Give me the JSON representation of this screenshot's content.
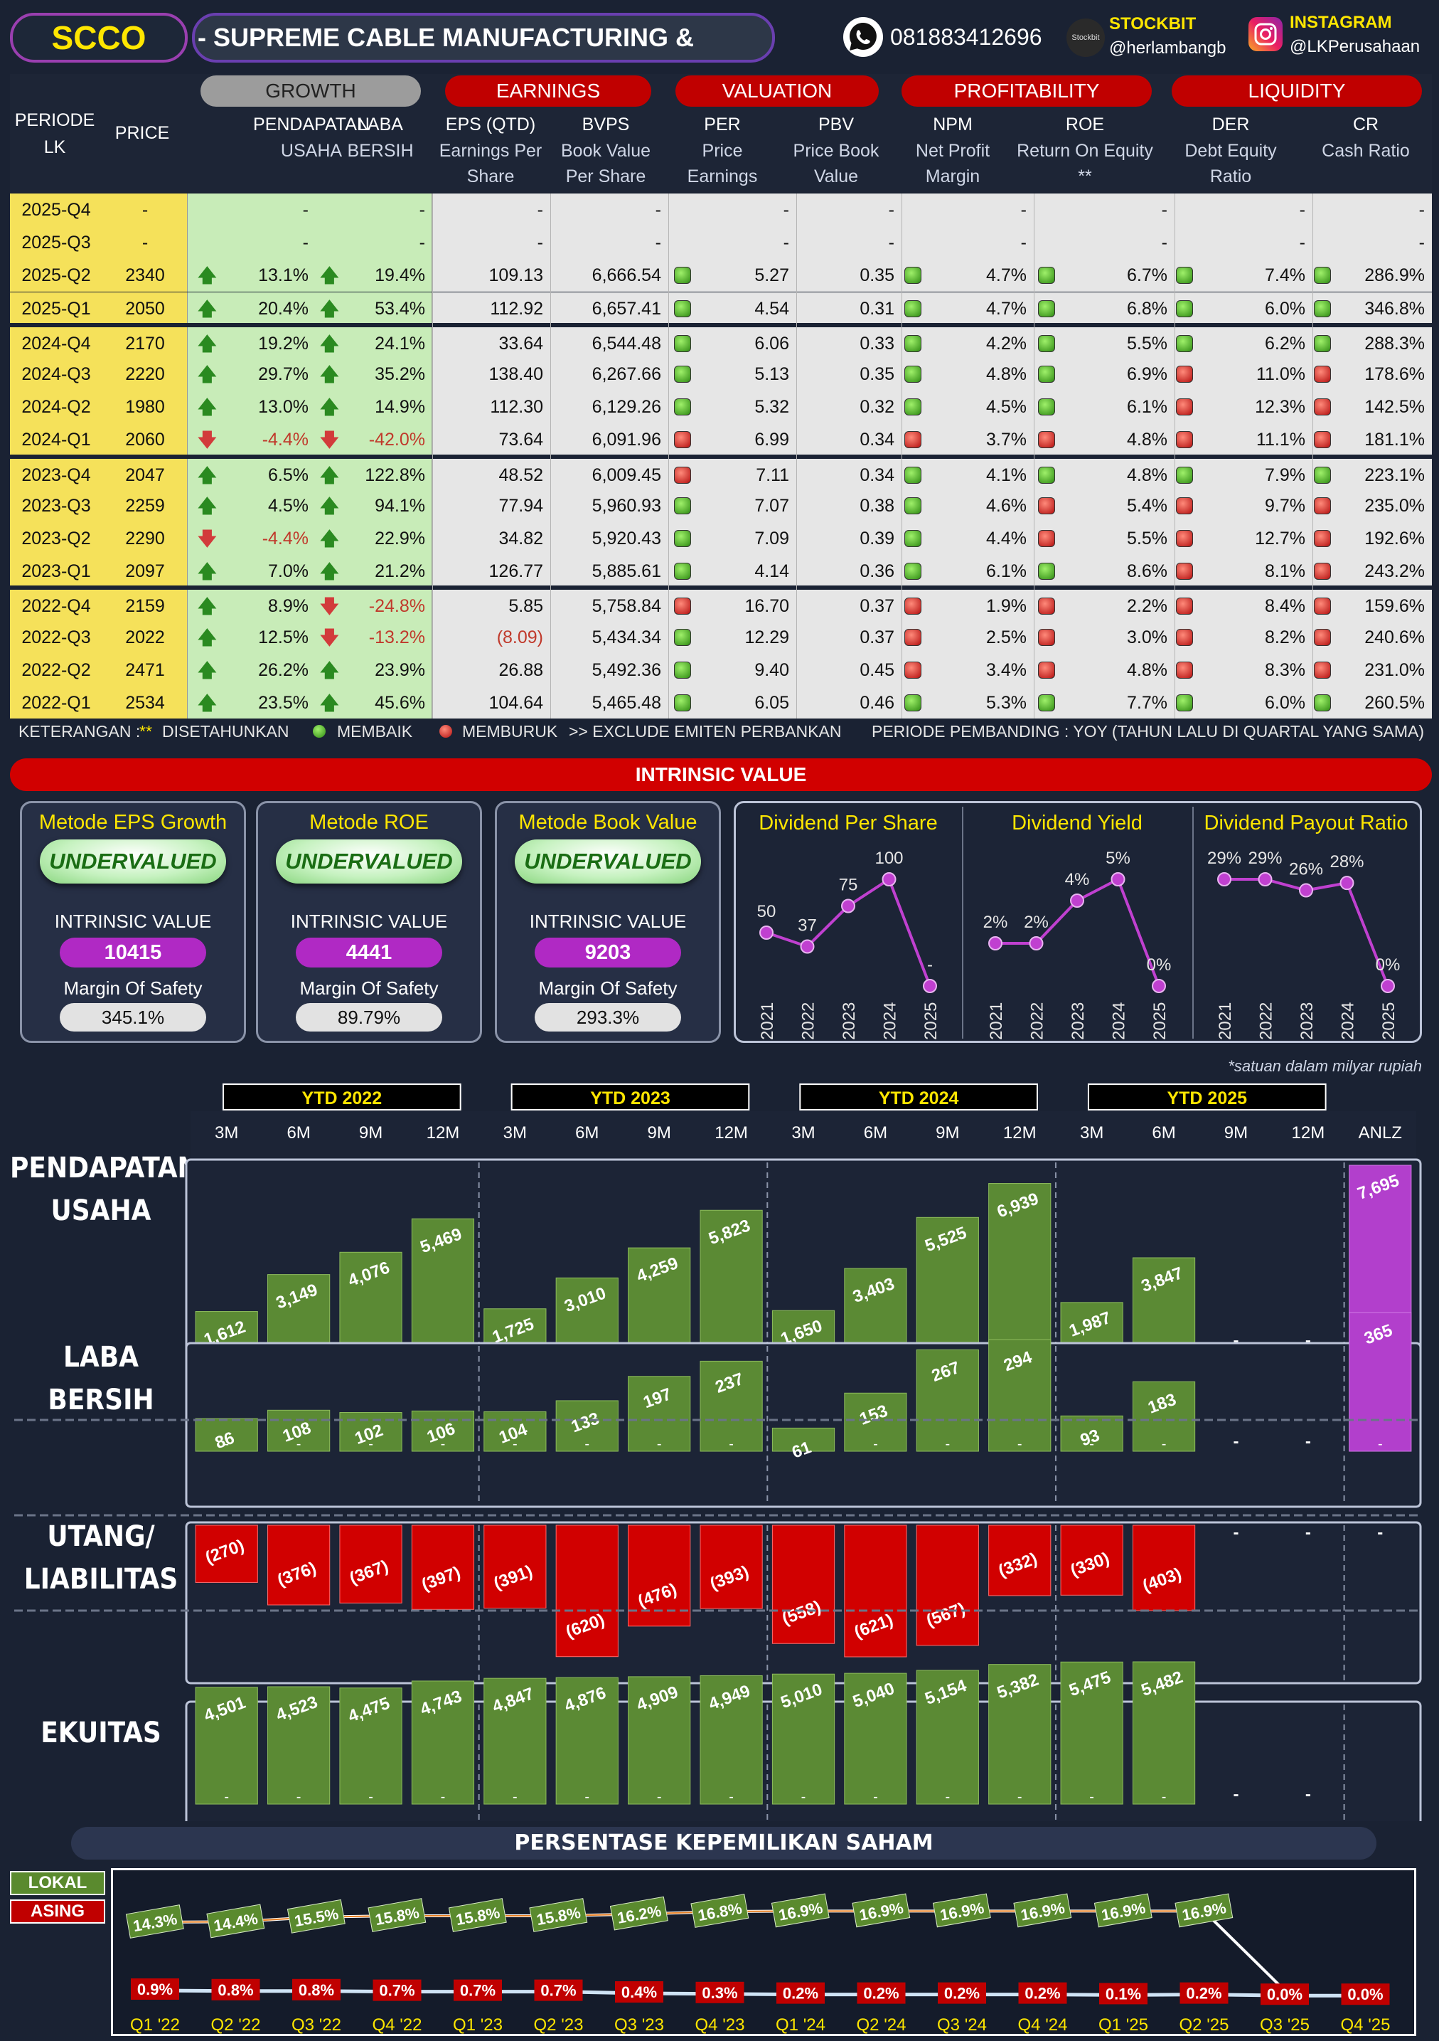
{
  "header": {
    "ticker": "SCCO",
    "company": "-  SUPREME CABLE MANUFACTURING &",
    "phone": "081883412696",
    "stockbit_title": "STOCKBIT",
    "stockbit_handle": "@herlambangb",
    "instagram_title": "INSTAGRAM",
    "instagram_handle": "@LKPerusahaan",
    "stockbit_logo_text": "Stockbit"
  },
  "table": {
    "group_headers": {
      "growth": "GROWTH",
      "earnings": "EARNINGS",
      "valuation": "VALUATION",
      "profitability": "PROFITABILITY",
      "liquidity": "LIQUIDITY"
    },
    "col_periode": "PERIODE\nLK",
    "col_price": "PRICE",
    "columns": [
      {
        "title": "PENDAPATAN",
        "sub": "USAHA"
      },
      {
        "title": "LABA",
        "sub": "BERSIH"
      },
      {
        "title": "EPS (QTD)",
        "sub": "Earnings Per Share"
      },
      {
        "title": "BVPS",
        "sub": "Book Value Per Share"
      },
      {
        "title": "PER",
        "sub": "Price Earnings Ratio **"
      },
      {
        "title": "PBV",
        "sub": "Price Book Value"
      },
      {
        "title": "NPM",
        "sub": "Net Profit Margin"
      },
      {
        "title": "ROE",
        "sub": "Return On Equity **"
      },
      {
        "title": "DER",
        "sub": "Debt Equity Ratio"
      },
      {
        "title": "CR",
        "sub": "Cash Ratio"
      }
    ],
    "rows": [
      {
        "p": "2025-Q4",
        "price": "-",
        "rev": "-",
        "ni": "-",
        "eps": "-",
        "bvps": "-",
        "per": "-",
        "pbv": "-",
        "npm": "-",
        "roe": "-",
        "der": "-",
        "cr": "-",
        "blank": true
      },
      {
        "p": "2025-Q3",
        "price": "-",
        "rev": "-",
        "ni": "-",
        "eps": "-",
        "bvps": "-",
        "per": "-",
        "pbv": "-",
        "npm": "-",
        "roe": "-",
        "der": "-",
        "cr": "-",
        "blank": true
      },
      {
        "p": "2025-Q2",
        "price": "2340",
        "rev": "13.1%",
        "ra": "up",
        "ni": "19.4%",
        "na": "up",
        "eps": "109.13",
        "bvps": "6,666.54",
        "perd": "g",
        "per": "5.27",
        "pbv": "0.35",
        "npmd": "g",
        "npm": "4.7%",
        "roed": "g",
        "roe": "6.7%",
        "derd": "g",
        "der": "7.4%",
        "crd": "g",
        "cr": "286.9%"
      },
      {
        "p": "2025-Q1",
        "price": "2050",
        "rev": "20.4%",
        "ra": "up",
        "ni": "53.4%",
        "na": "up",
        "eps": "112.92",
        "bvps": "6,657.41",
        "perd": "g",
        "per": "4.54",
        "pbv": "0.31",
        "npmd": "g",
        "npm": "4.7%",
        "roed": "g",
        "roe": "6.8%",
        "derd": "g",
        "der": "6.0%",
        "crd": "g",
        "cr": "346.8%"
      },
      {
        "p": "2024-Q4",
        "price": "2170",
        "rev": "19.2%",
        "ra": "up",
        "ni": "24.1%",
        "na": "up",
        "eps": "33.64",
        "bvps": "6,544.48",
        "perd": "g",
        "per": "6.06",
        "pbv": "0.33",
        "npmd": "g",
        "npm": "4.2%",
        "roed": "g",
        "roe": "5.5%",
        "derd": "g",
        "der": "6.2%",
        "crd": "g",
        "cr": "288.3%"
      },
      {
        "p": "2024-Q3",
        "price": "2220",
        "rev": "29.7%",
        "ra": "up",
        "ni": "35.2%",
        "na": "up",
        "eps": "138.40",
        "bvps": "6,267.66",
        "perd": "g",
        "per": "5.13",
        "pbv": "0.35",
        "npmd": "g",
        "npm": "4.8%",
        "roed": "g",
        "roe": "6.9%",
        "derd": "r",
        "der": "11.0%",
        "crd": "r",
        "cr": "178.6%"
      },
      {
        "p": "2024-Q2",
        "price": "1980",
        "rev": "13.0%",
        "ra": "up",
        "ni": "14.9%",
        "na": "up",
        "eps": "112.30",
        "bvps": "6,129.26",
        "perd": "g",
        "per": "5.32",
        "pbv": "0.32",
        "npmd": "g",
        "npm": "4.5%",
        "roed": "g",
        "roe": "6.1%",
        "derd": "r",
        "der": "12.3%",
        "crd": "r",
        "cr": "142.5%"
      },
      {
        "p": "2024-Q1",
        "price": "2060",
        "rev": "-4.4%",
        "ra": "down",
        "ni": "-42.0%",
        "na": "down",
        "eps": "73.64",
        "bvps": "6,091.96",
        "perd": "r",
        "per": "6.99",
        "pbv": "0.34",
        "npmd": "r",
        "npm": "3.7%",
        "roed": "r",
        "roe": "4.8%",
        "derd": "r",
        "der": "11.1%",
        "crd": "r",
        "cr": "181.1%"
      },
      {
        "p": "2023-Q4",
        "price": "2047",
        "rev": "6.5%",
        "ra": "up",
        "ni": "122.8%",
        "na": "up",
        "eps": "48.52",
        "bvps": "6,009.45",
        "perd": "r",
        "per": "7.11",
        "pbv": "0.34",
        "npmd": "g",
        "npm": "4.1%",
        "roed": "g",
        "roe": "4.8%",
        "derd": "g",
        "der": "7.9%",
        "crd": "g",
        "cr": "223.1%"
      },
      {
        "p": "2023-Q3",
        "price": "2259",
        "rev": "4.5%",
        "ra": "up",
        "ni": "94.1%",
        "na": "up",
        "eps": "77.94",
        "bvps": "5,960.93",
        "perd": "g",
        "per": "7.07",
        "pbv": "0.38",
        "npmd": "g",
        "npm": "4.6%",
        "roed": "r",
        "roe": "5.4%",
        "derd": "r",
        "der": "9.7%",
        "crd": "r",
        "cr": "235.0%"
      },
      {
        "p": "2023-Q2",
        "price": "2290",
        "rev": "-4.4%",
        "ra": "down",
        "ni": "22.9%",
        "na": "up",
        "eps": "34.82",
        "bvps": "5,920.43",
        "perd": "g",
        "per": "7.09",
        "pbv": "0.39",
        "npmd": "g",
        "npm": "4.4%",
        "roed": "r",
        "roe": "5.5%",
        "derd": "r",
        "der": "12.7%",
        "crd": "r",
        "cr": "192.6%"
      },
      {
        "p": "2023-Q1",
        "price": "2097",
        "rev": "7.0%",
        "ra": "up",
        "ni": "21.2%",
        "na": "up",
        "eps": "126.77",
        "bvps": "5,885.61",
        "perd": "g",
        "per": "4.14",
        "pbv": "0.36",
        "npmd": "g",
        "npm": "6.1%",
        "roed": "g",
        "roe": "8.6%",
        "derd": "r",
        "der": "8.1%",
        "crd": "r",
        "cr": "243.2%"
      },
      {
        "p": "2022-Q4",
        "price": "2159",
        "rev": "8.9%",
        "ra": "up",
        "ni": "-24.8%",
        "na": "down",
        "eps": "5.85",
        "bvps": "5,758.84",
        "perd": "r",
        "per": "16.70",
        "pbv": "0.37",
        "npmd": "r",
        "npm": "1.9%",
        "roed": "r",
        "roe": "2.2%",
        "derd": "r",
        "der": "8.4%",
        "crd": "r",
        "cr": "159.6%"
      },
      {
        "p": "2022-Q3",
        "price": "2022",
        "rev": "12.5%",
        "ra": "up",
        "ni": "-13.2%",
        "na": "down",
        "eps": "(8.09)",
        "epsred": true,
        "bvps": "5,434.34",
        "perd": "g",
        "per": "12.29",
        "pbv": "0.37",
        "npmd": "r",
        "npm": "2.5%",
        "roed": "r",
        "roe": "3.0%",
        "derd": "r",
        "der": "8.2%",
        "crd": "r",
        "cr": "240.6%"
      },
      {
        "p": "2022-Q2",
        "price": "2471",
        "rev": "26.2%",
        "ra": "up",
        "ni": "23.9%",
        "na": "up",
        "eps": "26.88",
        "bvps": "5,492.36",
        "perd": "g",
        "per": "9.40",
        "pbv": "0.45",
        "npmd": "r",
        "npm": "3.4%",
        "roed": "r",
        "roe": "4.8%",
        "derd": "r",
        "der": "8.3%",
        "crd": "r",
        "cr": "231.0%"
      },
      {
        "p": "2022-Q1",
        "price": "2534",
        "rev": "23.5%",
        "ra": "up",
        "ni": "45.6%",
        "na": "up",
        "eps": "104.64",
        "bvps": "5,465.48",
        "perd": "g",
        "per": "6.05",
        "pbv": "0.46",
        "npmd": "g",
        "npm": "5.3%",
        "roed": "g",
        "roe": "7.7%",
        "derd": "g",
        "der": "6.0%",
        "crd": "g",
        "cr": "260.5%"
      }
    ],
    "legend": {
      "keterangan": "KETERANGAN :",
      "stars": "**",
      "disetahunkan": "DISETAHUNKAN",
      "membaik": "MEMBAIK",
      "memburuk": "MEMBURUK",
      "exclude": ">> EXCLUDE EMITEN PERBANKAN",
      "pembanding": "PERIODE PEMBANDING : YOY (TAHUN LALU DI QUARTAL YANG SAMA)"
    }
  },
  "intrinsic": {
    "title": "INTRINSIC VALUE",
    "methods": [
      {
        "title": "Metode EPS Growth",
        "status": "UNDERVALUED",
        "iv_label": "INTRINSIC VALUE",
        "iv": "10415",
        "mos_label": "Margin Of Safety",
        "mos": "345.1%"
      },
      {
        "title": "Metode ROE",
        "status": "UNDERVALUED",
        "iv_label": "INTRINSIC VALUE",
        "iv": "4441",
        "mos_label": "Margin Of Safety",
        "mos": "89.79%"
      },
      {
        "title": "Metode Book Value",
        "status": "UNDERVALUED",
        "iv_label": "INTRINSIC VALUE",
        "iv": "9203",
        "mos_label": "Margin Of Safety",
        "mos": "293.3%"
      }
    ],
    "note": "*satuan dalam milyar rupiah"
  },
  "chart_data": [
    {
      "type": "line",
      "title": "Dividend Per Share",
      "x": [
        "2021",
        "2022",
        "2023",
        "2024",
        "2025"
      ],
      "values": [
        50,
        37,
        75,
        100,
        0
      ],
      "labels": [
        "50",
        "37",
        "75",
        "100",
        "-"
      ],
      "color": "#c040d0"
    },
    {
      "type": "line",
      "title": "Dividend Yield",
      "x": [
        "2021",
        "2022",
        "2023",
        "2024",
        "2025"
      ],
      "values": [
        2,
        2,
        4,
        5,
        0
      ],
      "labels": [
        "2%",
        "2%",
        "4%",
        "5%",
        "0%"
      ],
      "color": "#c040d0"
    },
    {
      "type": "line",
      "title": "Dividend Payout Ratio",
      "x": [
        "2021",
        "2022",
        "2023",
        "2024",
        "2025"
      ],
      "values": [
        29,
        29,
        26,
        28,
        0
      ],
      "labels": [
        "29%",
        "29%",
        "26%",
        "28%",
        "0%"
      ],
      "color": "#c040d0"
    },
    {
      "type": "bar",
      "title": "PENDAPATAN USAHA",
      "groups": [
        "YTD 2022",
        "YTD 2023",
        "YTD 2024",
        "YTD 2025"
      ],
      "categories": [
        "3M",
        "6M",
        "9M",
        "12M",
        "3M",
        "6M",
        "9M",
        "12M",
        "3M",
        "6M",
        "9M",
        "12M",
        "3M",
        "6M",
        "9M",
        "12M",
        "ANLZ"
      ],
      "values": [
        1612,
        3149,
        4076,
        5469,
        1725,
        3010,
        4259,
        5823,
        1650,
        3403,
        5525,
        6939,
        1987,
        3847,
        null,
        null,
        7695
      ],
      "labels": [
        "1,612",
        "3,149",
        "4,076",
        "5,469",
        "1,725",
        "3,010",
        "4,259",
        "5,823",
        "1,650",
        "3,403",
        "5,525",
        "6,939",
        "1,987",
        "3,847",
        "-",
        "-",
        "7,695"
      ]
    },
    {
      "type": "bar",
      "title": "LABA BERSIH",
      "values": [
        86,
        108,
        102,
        106,
        104,
        133,
        197,
        237,
        61,
        153,
        267,
        294,
        93,
        183,
        null,
        null,
        365
      ],
      "labels": [
        "86",
        "108",
        "102",
        "106",
        "104",
        "133",
        "197",
        "237",
        "61",
        "153",
        "267",
        "294",
        "93",
        "183",
        "-",
        "-",
        "365"
      ]
    },
    {
      "type": "bar",
      "title": "UTANG/ LIABILITAS",
      "values": [
        -270,
        -376,
        -367,
        -397,
        -391,
        -620,
        -476,
        -393,
        -558,
        -621,
        -567,
        -332,
        -330,
        -403,
        null,
        null,
        null
      ],
      "labels": [
        "(270)",
        "(376)",
        "(367)",
        "(397)",
        "(391)",
        "(620)",
        "(476)",
        "(393)",
        "(558)",
        "(621)",
        "(567)",
        "(332)",
        "(330)",
        "(403)",
        "-",
        "-",
        "-"
      ]
    },
    {
      "type": "bar",
      "title": "EKUITAS",
      "values": [
        4501,
        4523,
        4475,
        4743,
        4847,
        4876,
        4909,
        4949,
        5010,
        5040,
        5154,
        5382,
        5475,
        5482,
        null,
        null,
        null
      ],
      "labels": [
        "4,501",
        "4,523",
        "4,475",
        "4,743",
        "4,847",
        "4,876",
        "4,909",
        "4,949",
        "5,010",
        "5,040",
        "5,154",
        "5,382",
        "5,475",
        "5,482",
        "-",
        "-",
        ""
      ]
    },
    {
      "type": "line",
      "title": "PERSENTASE KEPEMILIKAN SAHAM",
      "x": [
        "Q1 '22",
        "Q2 '22",
        "Q3 '22",
        "Q4 '22",
        "Q1 '23",
        "Q2 '23",
        "Q3 '23",
        "Q4 '23",
        "Q1 '24",
        "Q2 '24",
        "Q3 '24",
        "Q4 '24",
        "Q1 '25",
        "Q2 '25",
        "Q3 '25",
        "Q4 '25"
      ],
      "series": [
        {
          "name": "LOKAL",
          "values": [
            14.3,
            14.4,
            15.5,
            15.8,
            15.8,
            15.8,
            16.2,
            16.8,
            16.9,
            16.9,
            16.9,
            16.9,
            16.9,
            16.9,
            0.0,
            0.0
          ],
          "labels": [
            "14.3%",
            "14.4%",
            "15.5%",
            "15.8%",
            "15.8%",
            "15.8%",
            "16.2%",
            "16.8%",
            "16.9%",
            "16.9%",
            "16.9%",
            "16.9%",
            "16.9%",
            "16.9%",
            "",
            ""
          ],
          "color": "#5a8a2e"
        },
        {
          "name": "ASING",
          "values": [
            0.9,
            0.8,
            0.8,
            0.7,
            0.7,
            0.7,
            0.4,
            0.3,
            0.2,
            0.2,
            0.2,
            0.2,
            0.1,
            0.2,
            0.0,
            0.0
          ],
          "labels": [
            "0.9%",
            "0.8%",
            "0.8%",
            "0.7%",
            "0.7%",
            "0.7%",
            "0.4%",
            "0.3%",
            "0.2%",
            "0.2%",
            "0.2%",
            "0.2%",
            "0.1%",
            "0.2%",
            "0.0%",
            "0.0%"
          ],
          "color": "#c00000"
        }
      ]
    }
  ],
  "colors": {
    "green_bar": "#5b8a34",
    "red_bar": "#d10000",
    "anlz": "#b23fcc",
    "row_yellow": "#f5e15a",
    "row_green": "#c8ecb8",
    "row_gray": "#e6e6e6"
  }
}
